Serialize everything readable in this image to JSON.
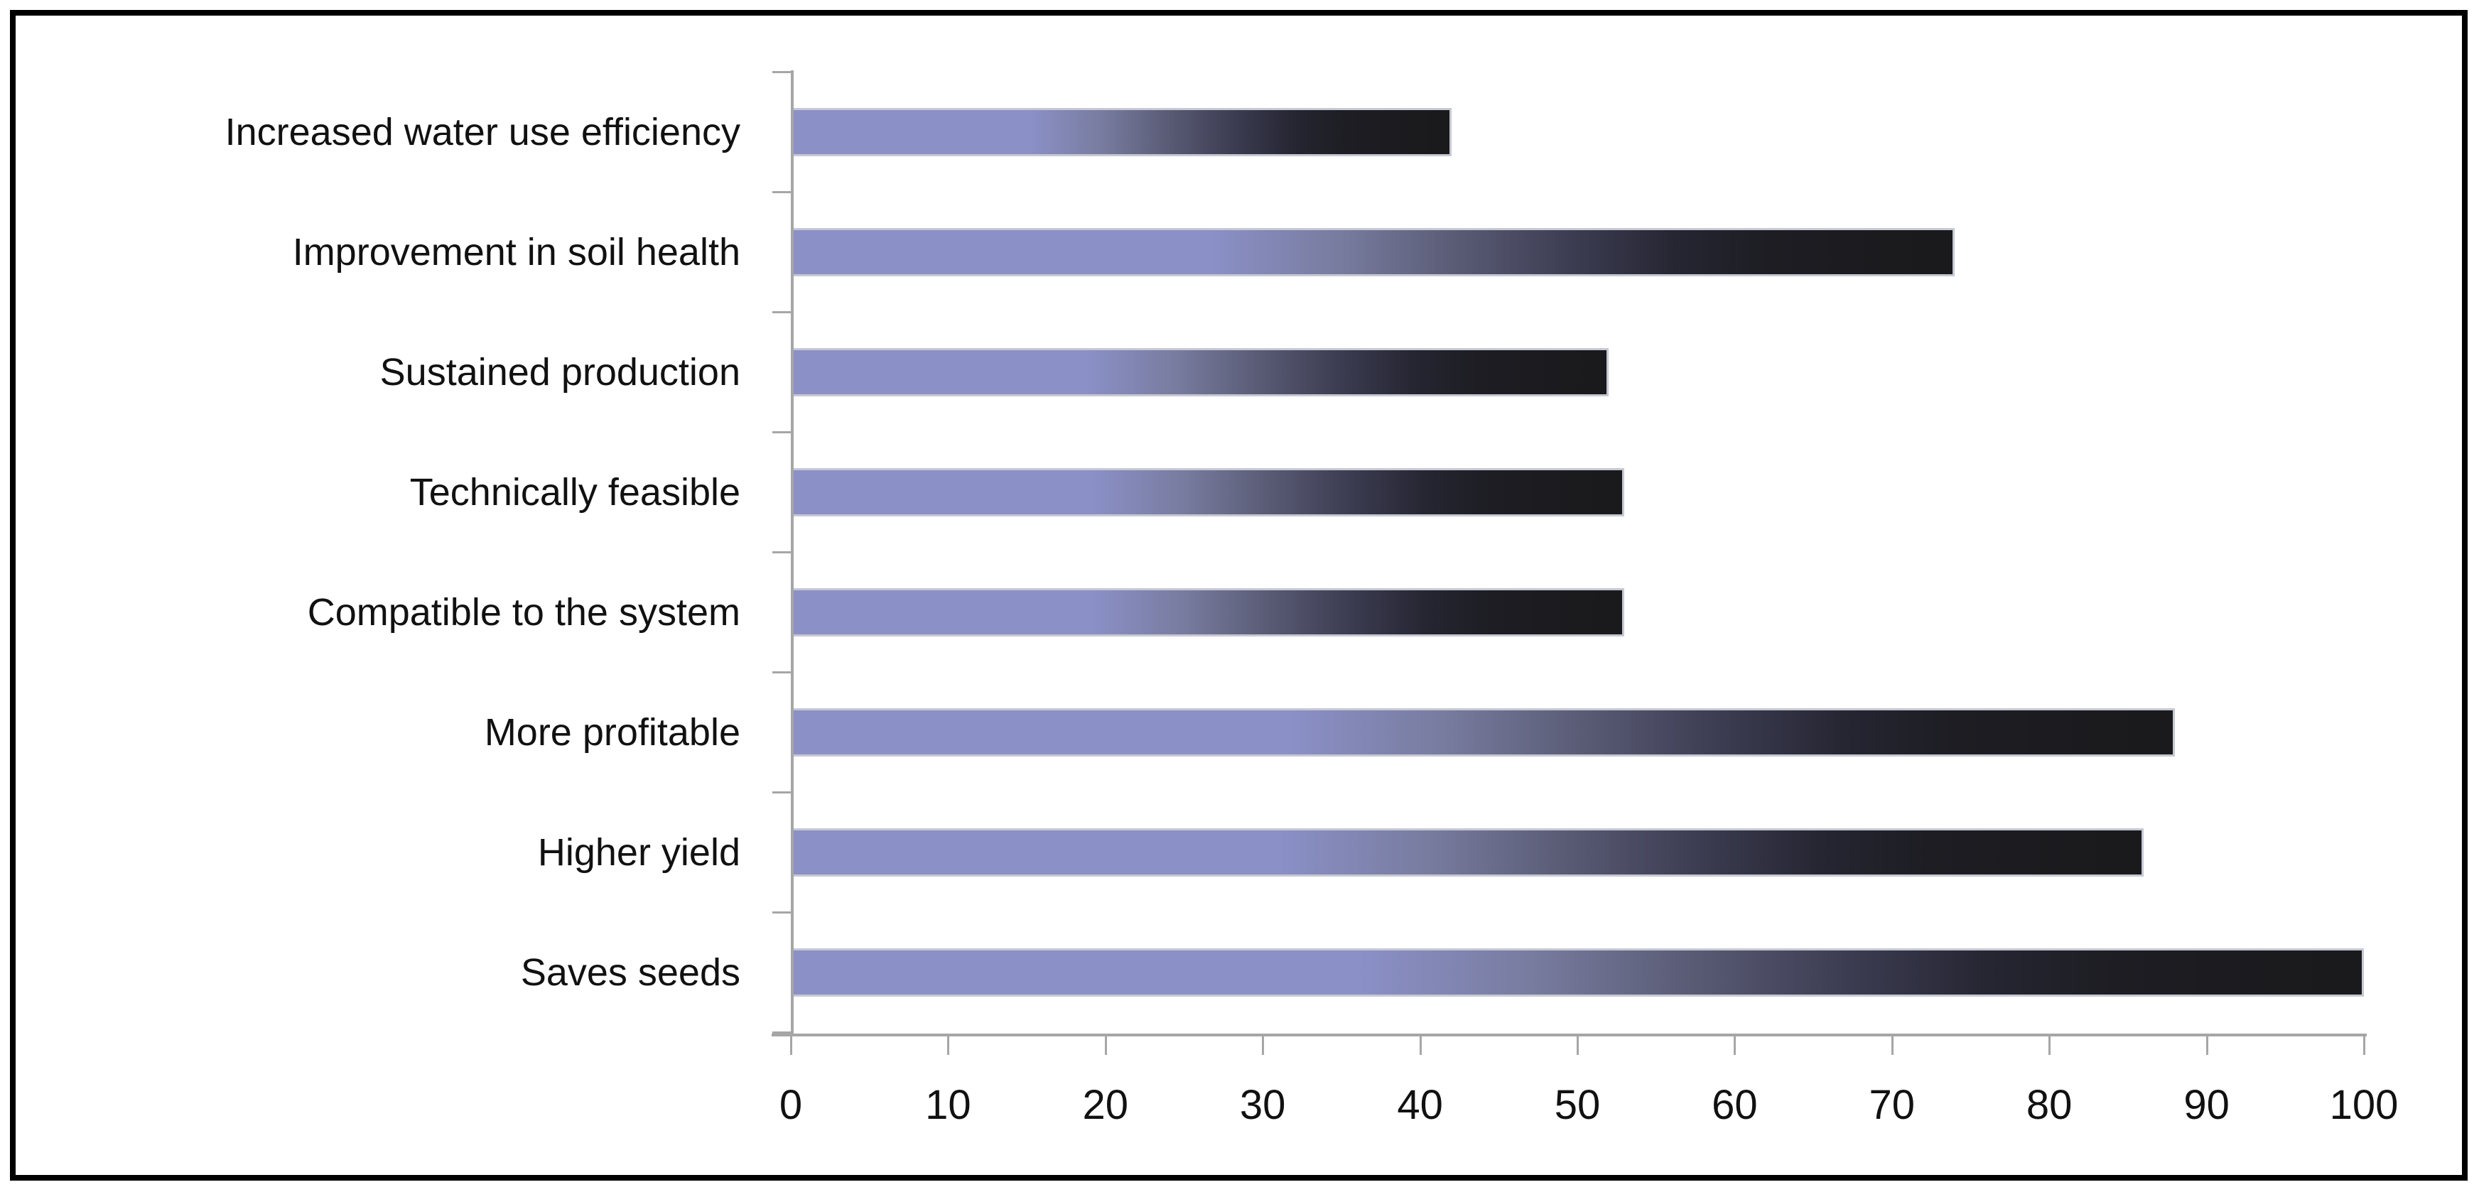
{
  "chart_data": {
    "type": "bar",
    "orientation": "horizontal",
    "title": "",
    "categories": [
      "Increased water use efficiency",
      "Improvement in soil health",
      "Sustained production",
      "Technically feasible",
      "Compatible to the system",
      "More profitable",
      "Higher yield",
      "Saves seeds"
    ],
    "values": [
      42,
      74,
      52,
      53,
      53,
      88,
      86,
      100
    ],
    "xlabel": "",
    "ylabel": "",
    "xlim": [
      0,
      100
    ],
    "xticks": [
      0,
      10,
      20,
      30,
      40,
      50,
      60,
      70,
      80,
      90,
      100
    ],
    "xtick_labels": [
      "0",
      "10",
      "20",
      "30",
      "40",
      "50",
      "60",
      "70",
      "80",
      "90",
      "100"
    ],
    "grid": false,
    "legend_position": "none",
    "colors": {
      "bar_gradient": [
        "#8b90c7 0%",
        "#8b90c7 36%",
        "#787c9f 47%",
        "#5a5c76 57%",
        "#3c3d52 67%",
        "#262633 76%",
        "#1d1d23 84%",
        "#1a1a1c 100%"
      ],
      "bar_border": "#c6c8d3",
      "axis": "#a6a6a6",
      "text": "#111111",
      "frame_border": "#000000",
      "background": "#ffffff"
    }
  }
}
